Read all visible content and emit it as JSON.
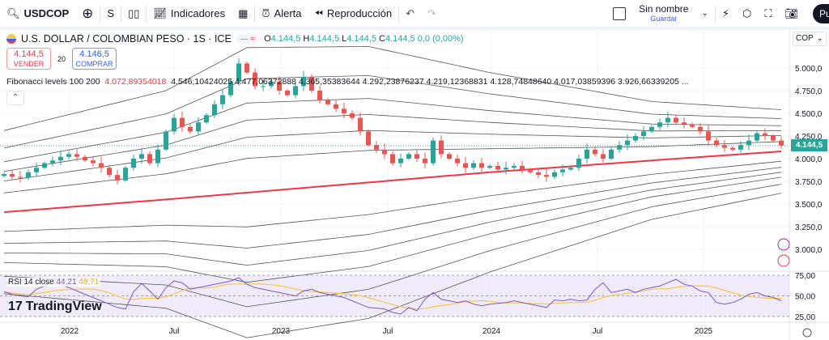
{
  "toolbar": {
    "symbol": "USDCOP",
    "interval": "S",
    "indicators": "Indicadores",
    "alert": "Alerta",
    "replay": "Reproducción",
    "layout_name": "Sin nombre",
    "save": "Guardar",
    "publish": "Pub"
  },
  "legend": {
    "title": "U.S. DOLLAR / COLOMBIAN PESO · 1S · ICE",
    "o_label": "O",
    "o": "4.144,5",
    "h_label": "H",
    "h": "4.144,5",
    "l_label": "L",
    "l": "4.144,5",
    "c_label": "C",
    "c": "4.144,5",
    "change": "0,0 (0,00%)"
  },
  "trade": {
    "sell_price": "4.144,5",
    "sell_label": "VENDER",
    "spread": "20",
    "buy_price": "4.146,5",
    "buy_label": "COMPRAR"
  },
  "fib": {
    "name": "Fibonacci levels 100 200",
    "v0": "4.072,89354018",
    "values": "4.546,10424025  4.477,06372888  4.365,35383644  4.292,23876237  4.219,12368831  4.128,74848640  4.017,03859396  3.926,66339205  ..."
  },
  "rsi": {
    "name": "RSI 14 close",
    "value": "44,21",
    "ma": "48,71"
  },
  "logo": "TradingView",
  "currency": "COP",
  "last_price": "4.144,5",
  "colors": {
    "up": "#26a69a",
    "down": "#ef5350",
    "ma": "#f23645",
    "band": "#555555",
    "rsi": "#7e57c2",
    "rsi_ma": "#f7c948"
  },
  "chart_data": {
    "type": "candlestick",
    "interval": "2 weeks",
    "price_axis": {
      "ticks": [
        3000,
        3250,
        3500,
        3750,
        4000,
        4250,
        4500,
        4750,
        5000
      ],
      "labels": [
        "3.000,0",
        "3.250,0",
        "3.500,0",
        "3.750,0",
        "4.000,0",
        "4.250,0",
        "4.500,0",
        "4.750,0",
        "5.000,0"
      ]
    },
    "time_axis": [
      "2022",
      "Jul",
      "2023",
      "Jul",
      "2024",
      "Jul",
      "2025"
    ],
    "closes": [
      3830,
      3800,
      3790,
      3850,
      3900,
      3950,
      3980,
      4020,
      4050,
      4020,
      3980,
      3950,
      3900,
      3820,
      3760,
      3900,
      4000,
      4050,
      3950,
      4100,
      4300,
      4450,
      4350,
      4300,
      4400,
      4480,
      4600,
      4700,
      4850,
      5050,
      4950,
      4800,
      4800,
      4850,
      4750,
      4700,
      4800,
      4900,
      4750,
      4650,
      4600,
      4550,
      4500,
      4450,
      4300,
      4150,
      4100,
      4050,
      3950,
      4000,
      4050,
      4000,
      3950,
      4200,
      4050,
      4000,
      3950,
      3900,
      3950,
      3900,
      3920,
      3880,
      3900,
      3920,
      3880,
      3850,
      3820,
      3800,
      3850,
      3880,
      3900,
      4000,
      4100,
      4050,
      4000,
      4100,
      4150,
      4200,
      4250,
      4300,
      4350,
      4400,
      4450,
      4400,
      4380,
      4350,
      4300,
      4200,
      4150,
      4120,
      4100,
      4150,
      4200,
      4280,
      4250,
      4200,
      4144.5
    ],
    "ma_line": {
      "index": [
        0,
        20,
        40,
        60,
        80,
        96
      ],
      "values": [
        3410,
        3550,
        3700,
        3850,
        3980,
        4080
      ]
    },
    "band_dev": {
      "index": [
        0,
        20,
        30,
        45,
        60,
        80,
        96
      ],
      "values": [
        900,
        1200,
        1600,
        1500,
        1100,
        650,
        460
      ]
    },
    "band_factors": [
      1,
      0.786,
      0.618,
      0.5,
      0.382,
      0.236
    ],
    "rsi_axis": {
      "ticks": [
        25,
        50,
        75
      ],
      "labels": [
        "25,00",
        "50,00",
        "75,00"
      ]
    },
    "rsi_values": [
      55,
      52,
      50,
      49,
      58,
      62,
      66,
      64,
      60,
      56,
      52,
      48,
      44,
      40,
      36,
      34,
      55,
      65,
      56,
      46,
      60,
      68,
      66,
      58,
      60,
      62,
      64,
      66,
      68,
      72,
      64,
      60,
      58,
      56,
      54,
      52,
      50,
      56,
      58,
      54,
      52,
      50,
      48,
      44,
      40,
      36,
      35,
      34,
      30,
      28,
      36,
      32,
      46,
      54,
      46,
      44,
      42,
      44,
      40,
      38,
      40,
      41,
      42,
      44,
      42,
      40,
      38,
      36,
      45,
      44,
      46,
      44,
      45,
      58,
      66,
      54,
      56,
      58,
      54,
      58,
      60,
      62,
      66,
      70,
      64,
      62,
      56,
      54,
      42,
      40,
      42,
      46,
      52,
      54,
      50,
      48,
      44.21
    ]
  }
}
